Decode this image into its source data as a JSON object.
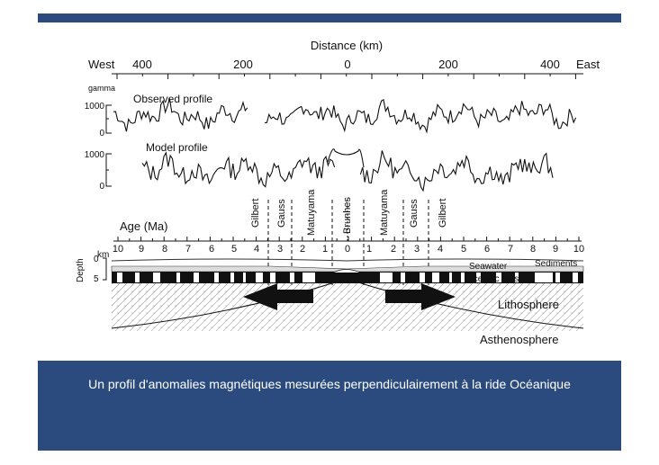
{
  "caption": "Un profil d'anomalies magnétiques mesurées perpendiculairement à la ride Océanique",
  "colors": {
    "bar": "#2b4b7e",
    "ink": "#111111"
  },
  "distance": {
    "title": "Distance (km)",
    "west": "West",
    "east": "East",
    "ticks": [
      "400",
      "200",
      "0",
      "200",
      "400"
    ]
  },
  "profiles": {
    "unit": "gamma",
    "observed_label": "Observed profile",
    "model_label": "Model profile",
    "y_ticks": [
      "1000",
      "0"
    ]
  },
  "age": {
    "title": "Age (Ma)",
    "left_ticks": [
      "10",
      "9",
      "8",
      "7",
      "6",
      "5",
      "4",
      "3",
      "2",
      "1"
    ],
    "center": "0",
    "right_ticks": [
      "1",
      "2",
      "3",
      "4",
      "5",
      "6",
      "7",
      "8",
      "9",
      "10"
    ]
  },
  "epochs": [
    "Gilbert",
    "Gauss",
    "Matuyama",
    "Brunhes",
    "Matuyama",
    "Gauss",
    "Gilbert"
  ],
  "depth": {
    "axis": "Depth",
    "unit": "km",
    "ticks": [
      "0",
      "5"
    ]
  },
  "layers": {
    "seawater": "Seawater",
    "sediments": "Sediments",
    "oceanic_crust": "Oceanic crust",
    "lithosphere": "Lithosphere",
    "asthenosphere": "Asthenosphere"
  }
}
